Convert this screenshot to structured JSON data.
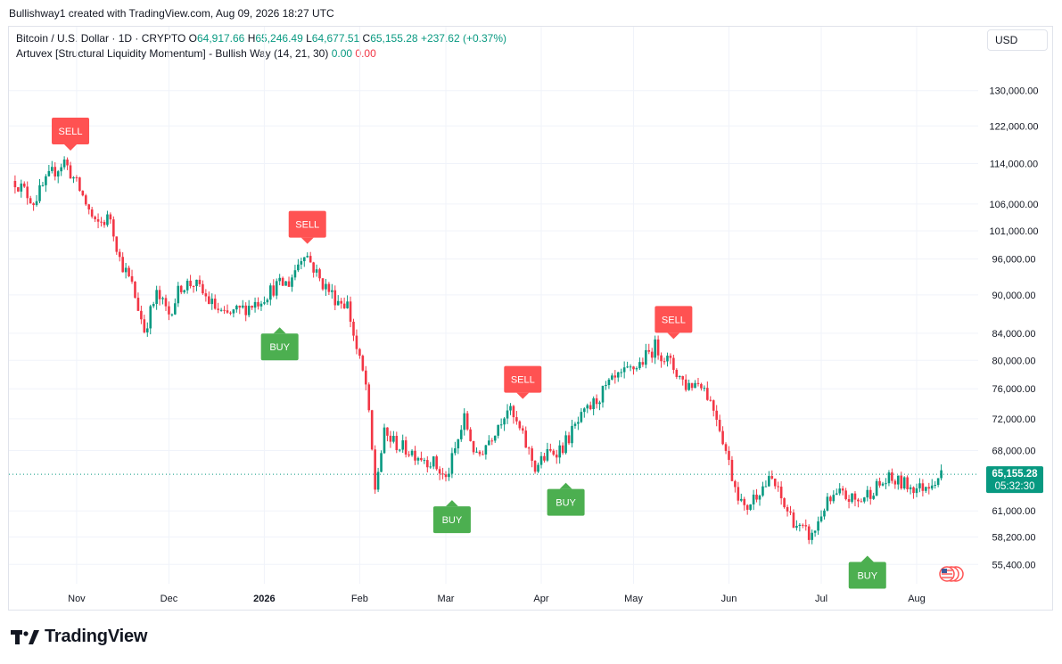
{
  "header": {
    "created_by": "Bullishway1 created with TradingView.com, Aug 09, 2026 18:27 UTC"
  },
  "legend": {
    "symbol": "Bitcoin / U.S. Dollar · 1D · CRYPTO",
    "o_label": "O",
    "o_value": "64,917.66",
    "h_label": "H",
    "h_value": "65,246.49",
    "l_label": "L",
    "l_value": "64,677.51",
    "c_label": "C",
    "c_value": "65,155.28",
    "change": "+237.62 (+0.37%)",
    "indicator": "Artuvex [Structural Liquidity Momentum] - Bullish Way (14, 21, 30)",
    "indicator_v1": "0.00",
    "indicator_v2": "0.00"
  },
  "currency_button": "USD",
  "footer": {
    "brand": "TradingView"
  },
  "colors": {
    "up": "#089981",
    "down": "#f23645",
    "buy": "#4caf50",
    "sell": "#ff5252",
    "grid": "#f0f3fa"
  },
  "chart_data": {
    "type": "candlestick",
    "y_scale": "log",
    "ylim": [
      53500,
      139000
    ],
    "y_ticks": [
      "130,000.00",
      "122,000.00",
      "114,000.00",
      "106,000.00",
      "101,000.00",
      "96,000.00",
      "90,000.00",
      "84,000.00",
      "80,000.00",
      "76,000.00",
      "72,000.00",
      "68,000.00",
      "61,000.00",
      "58,200.00",
      "55,400.00"
    ],
    "y_tick_values": [
      130000,
      122000,
      114000,
      106000,
      101000,
      96000,
      90000,
      84000,
      80000,
      76000,
      72000,
      68000,
      61000,
      58200,
      55400
    ],
    "x_ticks": [
      {
        "label": "Nov",
        "date": "2025-11-01"
      },
      {
        "label": "Dec",
        "date": "2025-12-01"
      },
      {
        "label": "2026",
        "date": "2026-01-01",
        "bold": true
      },
      {
        "label": "Feb",
        "date": "2026-02-01"
      },
      {
        "label": "Mar",
        "date": "2026-03-01"
      },
      {
        "label": "Apr",
        "date": "2026-04-01"
      },
      {
        "label": "May",
        "date": "2026-05-01"
      },
      {
        "label": "Jun",
        "date": "2026-06-01"
      },
      {
        "label": "Jul",
        "date": "2026-07-01"
      },
      {
        "label": "Aug",
        "date": "2026-08-01"
      }
    ],
    "last_price": {
      "value": 65155.28,
      "label": "65,155.28",
      "countdown": "05:32:30"
    },
    "price_path": [
      [
        "2025-10-12",
        110500
      ],
      [
        "2025-10-18",
        106500
      ],
      [
        "2025-10-24",
        112000
      ],
      [
        "2025-10-28",
        114500
      ],
      [
        "2025-11-03",
        107500
      ],
      [
        "2025-11-07",
        102000
      ],
      [
        "2025-11-12",
        103500
      ],
      [
        "2025-11-15",
        96000
      ],
      [
        "2025-11-19",
        91500
      ],
      [
        "2025-11-23",
        84500
      ],
      [
        "2025-11-27",
        90000
      ],
      [
        "2025-12-01",
        87000
      ],
      [
        "2025-12-05",
        91500
      ],
      [
        "2025-12-09",
        92000
      ],
      [
        "2025-12-14",
        89000
      ],
      [
        "2025-12-19",
        86500
      ],
      [
        "2025-12-24",
        87500
      ],
      [
        "2025-12-30",
        89000
      ],
      [
        "2026-01-05",
        91500
      ],
      [
        "2026-01-09",
        92000
      ],
      [
        "2026-01-14",
        97500
      ],
      [
        "2026-01-19",
        92500
      ],
      [
        "2026-01-24",
        89500
      ],
      [
        "2026-01-28",
        88500
      ],
      [
        "2026-01-31",
        81500
      ],
      [
        "2026-02-03",
        76500
      ],
      [
        "2026-02-06",
        63500
      ],
      [
        "2026-02-09",
        70000
      ],
      [
        "2026-02-14",
        68500
      ],
      [
        "2026-02-20",
        67500
      ],
      [
        "2026-02-25",
        66500
      ],
      [
        "2026-03-01",
        64500
      ],
      [
        "2026-03-04",
        68000
      ],
      [
        "2026-03-07",
        72000
      ],
      [
        "2026-03-11",
        67000
      ],
      [
        "2026-03-16",
        70000
      ],
      [
        "2026-03-21",
        73500
      ],
      [
        "2026-03-25",
        70500
      ],
      [
        "2026-03-30",
        66000
      ],
      [
        "2026-04-03",
        67500
      ],
      [
        "2026-04-08",
        68500
      ],
      [
        "2026-04-13",
        71500
      ],
      [
        "2026-04-18",
        74000
      ],
      [
        "2026-04-23",
        76500
      ],
      [
        "2026-04-28",
        78000
      ],
      [
        "2026-05-03",
        79500
      ],
      [
        "2026-05-08",
        82000
      ],
      [
        "2026-05-13",
        79500
      ],
      [
        "2026-05-18",
        76500
      ],
      [
        "2026-05-23",
        77000
      ],
      [
        "2026-05-28",
        72500
      ],
      [
        "2026-06-02",
        65000
      ],
      [
        "2026-06-06",
        61000
      ],
      [
        "2026-06-11",
        63500
      ],
      [
        "2026-06-15",
        64500
      ],
      [
        "2026-06-19",
        61500
      ],
      [
        "2026-06-24",
        59000
      ],
      [
        "2026-06-28",
        58200
      ],
      [
        "2026-07-02",
        61500
      ],
      [
        "2026-07-07",
        62800
      ],
      [
        "2026-07-13",
        62000
      ],
      [
        "2026-07-18",
        63500
      ],
      [
        "2026-07-23",
        64500
      ],
      [
        "2026-07-28",
        64000
      ],
      [
        "2026-08-02",
        63500
      ],
      [
        "2026-08-09",
        65155
      ]
    ],
    "signals": [
      {
        "type": "SELL",
        "date": "2025-10-30",
        "price": 116500
      },
      {
        "type": "SELL",
        "date": "2026-01-15",
        "price": 98500
      },
      {
        "type": "BUY",
        "date": "2026-01-06",
        "price": 86000
      },
      {
        "type": "BUY",
        "date": "2026-03-03",
        "price": 63000
      },
      {
        "type": "SELL",
        "date": "2026-03-26",
        "price": 74500
      },
      {
        "type": "BUY",
        "date": "2026-04-09",
        "price": 65000
      },
      {
        "type": "SELL",
        "date": "2026-05-14",
        "price": 83000
      },
      {
        "type": "BUY",
        "date": "2026-07-16",
        "price": 57000
      }
    ]
  }
}
